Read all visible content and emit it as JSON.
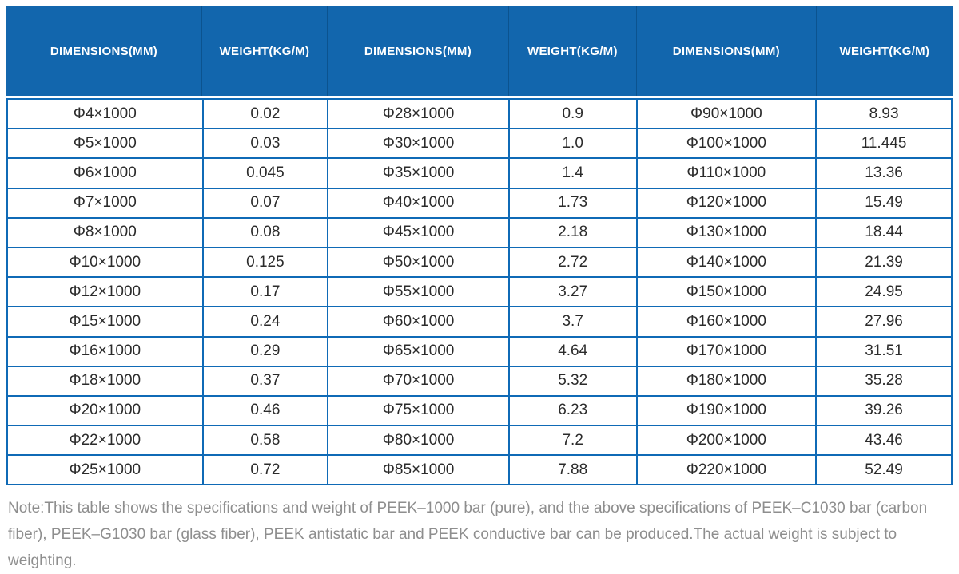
{
  "header": {
    "columns": [
      "DIMENSIONS(MM)",
      "WEIGHT(KG/M)",
      "DIMENSIONS(MM)",
      "WEIGHT(KG/M)",
      "DIMENSIONS(MM)",
      "WEIGHT(KG/M)"
    ]
  },
  "chart_data": {
    "type": "table",
    "columns": [
      "DIMENSIONS(MM)",
      "WEIGHT(KG/M)",
      "DIMENSIONS(MM)",
      "WEIGHT(KG/M)",
      "DIMENSIONS(MM)",
      "WEIGHT(KG/M)"
    ],
    "rows": [
      [
        "Φ4×1000",
        "0.02",
        "Φ28×1000",
        "0.9",
        "Φ90×1000",
        "8.93"
      ],
      [
        "Φ5×1000",
        "0.03",
        "Φ30×1000",
        "1.0",
        "Φ100×1000",
        "11.445"
      ],
      [
        "Φ6×1000",
        "0.045",
        "Φ35×1000",
        "1.4",
        "Φ110×1000",
        "13.36"
      ],
      [
        "Φ7×1000",
        "0.07",
        "Φ40×1000",
        "1.73",
        "Φ120×1000",
        "15.49"
      ],
      [
        "Φ8×1000",
        "0.08",
        "Φ45×1000",
        "2.18",
        "Φ130×1000",
        "18.44"
      ],
      [
        "Φ10×1000",
        "0.125",
        "Φ50×1000",
        "2.72",
        "Φ140×1000",
        "21.39"
      ],
      [
        "Φ12×1000",
        "0.17",
        "Φ55×1000",
        "3.27",
        "Φ150×1000",
        "24.95"
      ],
      [
        "Φ15×1000",
        "0.24",
        "Φ60×1000",
        "3.7",
        "Φ160×1000",
        "27.96"
      ],
      [
        "Φ16×1000",
        "0.29",
        "Φ65×1000",
        "4.64",
        "Φ170×1000",
        "31.51"
      ],
      [
        "Φ18×1000",
        "0.37",
        "Φ70×1000",
        "5.32",
        "Φ180×1000",
        "35.28"
      ],
      [
        "Φ20×1000",
        "0.46",
        "Φ75×1000",
        "6.23",
        "Φ190×1000",
        "39.26"
      ],
      [
        "Φ22×1000",
        "0.58",
        "Φ80×1000",
        "7.2",
        "Φ200×1000",
        "43.46"
      ],
      [
        "Φ25×1000",
        "0.72",
        "Φ85×1000",
        "7.88",
        "Φ220×1000",
        "52.49"
      ]
    ]
  },
  "note": {
    "text": "Note:This table shows the specifications and weight of PEEK–1000 bar (pure), and the above specifications of PEEK–C1030 bar (carbon fiber), PEEK–G1030 bar (glass fiber), PEEK antistatic bar and PEEK conductive bar can be produced.The actual weight is subject to weighting."
  },
  "colors": {
    "header_bg": "#1266ad",
    "header_separator": "#0b538f",
    "border_blue": "#0f6ab6",
    "cell_text": "#2b2b2b",
    "note_text": "#8e8e8e"
  }
}
